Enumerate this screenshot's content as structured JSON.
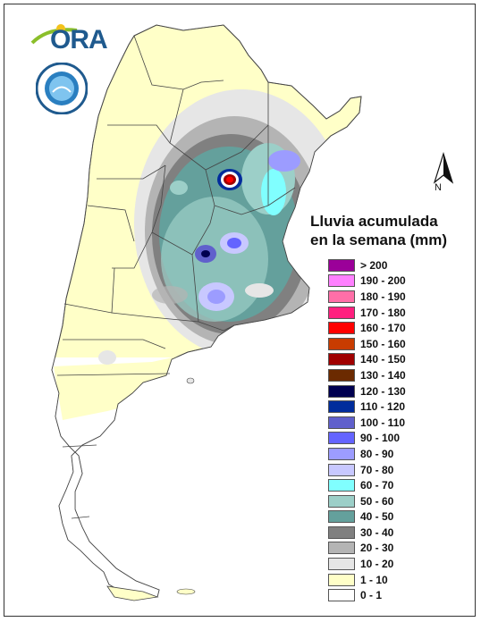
{
  "title_line1": "Lluvia acumulada",
  "title_line2": "en la semana (mm)",
  "logo_text": "ORA",
  "north_label": "N",
  "legend": [
    {
      "label": "> 200",
      "color": "#9b0099"
    },
    {
      "label": "190 - 200",
      "color": "#ff80ff"
    },
    {
      "label": "180 - 190",
      "color": "#ff6fa8"
    },
    {
      "label": "170 - 180",
      "color": "#ff1f7f"
    },
    {
      "label": "160 - 170",
      "color": "#ff0000"
    },
    {
      "label": "150 - 160",
      "color": "#c83c00"
    },
    {
      "label": "140 - 150",
      "color": "#a00000"
    },
    {
      "label": "130 - 140",
      "color": "#6b2a00"
    },
    {
      "label": "120 - 130",
      "color": "#000050"
    },
    {
      "label": "110 - 120",
      "color": "#002c9c"
    },
    {
      "label": "100 - 110",
      "color": "#6060cc"
    },
    {
      "label": "90 - 100",
      "color": "#6464ff"
    },
    {
      "label": "80 - 90",
      "color": "#9c9cff"
    },
    {
      "label": "70 - 80",
      "color": "#c8c8ff"
    },
    {
      "label": "60 - 70",
      "color": "#80ffff"
    },
    {
      "label": "50 - 60",
      "color": "#9ccfc8"
    },
    {
      "label": "40 - 50",
      "color": "#64a09c"
    },
    {
      "label": "30 - 40",
      "color": "#808080"
    },
    {
      "label": "20 - 30",
      "color": "#b4b4b4"
    },
    {
      "label": "10 - 20",
      "color": "#e6e6e6"
    },
    {
      "label": "1 - 10",
      "color": "#ffffc8"
    },
    {
      "label": "0 - 1",
      "color": "#ffffff"
    }
  ]
}
